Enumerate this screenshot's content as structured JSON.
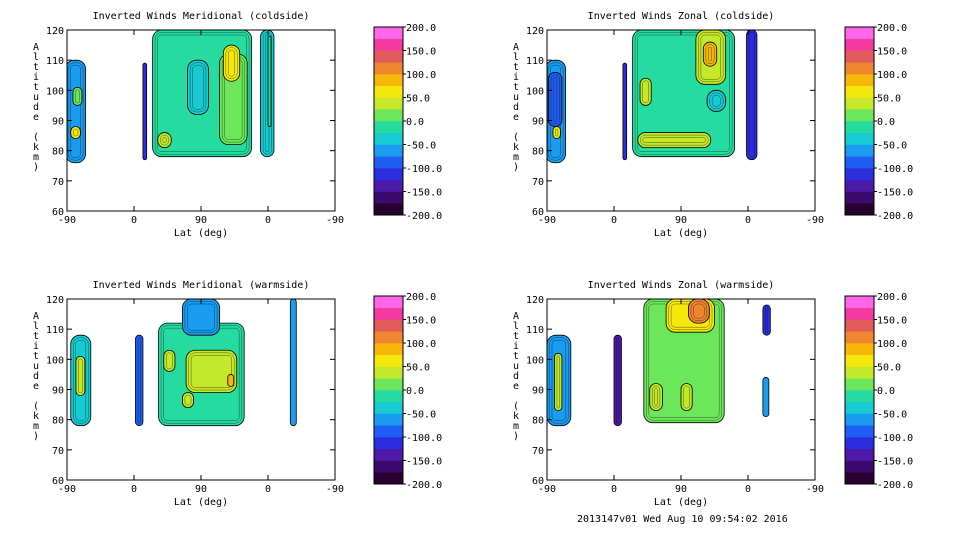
{
  "chart_data": [
    {
      "type": "heatmap",
      "title": "Inverted Winds Meridional (coldside)",
      "xlabel": "Lat (deg)",
      "ylabel": "Altitude (km)",
      "x_ticks": [
        "-90",
        "0",
        "90",
        "0",
        "-90"
      ],
      "y_ticks": [
        "60",
        "70",
        "80",
        "90",
        "100",
        "110",
        "120"
      ],
      "ylim": [
        60,
        120
      ],
      "colorbar_ticks": [
        "200.0",
        "150.0",
        "100.0",
        "50.0",
        "0.0",
        "-50.0",
        "-100.0",
        "-150.0",
        "-200.0"
      ],
      "colorbar_range": [
        -200,
        200
      ],
      "data_blobs": [
        {
          "x": [
            -78,
            -73
          ],
          "y": [
            77,
            109
          ],
          "value": -120
        },
        {
          "x": [
            -65,
            68
          ],
          "y": [
            78,
            120
          ],
          "value": -5
        },
        {
          "x": [
            -18,
            10
          ],
          "y": [
            92,
            110
          ],
          "value": -35
        },
        {
          "x": [
            25,
            62
          ],
          "y": [
            82,
            112
          ],
          "value": 20
        },
        {
          "x": [
            30,
            52
          ],
          "y": [
            103,
            115
          ],
          "value": 55
        },
        {
          "x": [
            -58,
            -40
          ],
          "y": [
            81,
            86
          ],
          "value": 40
        },
        {
          "x": [
            80,
            98
          ],
          "y": [
            78,
            120
          ],
          "value": -50
        },
        {
          "x": [
            90,
            93
          ],
          "y": [
            88,
            118
          ],
          "value": -25
        },
        {
          "x": [
            -182,
            -155
          ],
          "y": [
            76,
            110
          ],
          "value": -60
        },
        {
          "x": [
            -175,
            -162
          ],
          "y": [
            84,
            88
          ],
          "value": 55
        },
        {
          "x": [
            -172,
            -160
          ],
          "y": [
            95,
            101
          ],
          "value": 10
        }
      ]
    },
    {
      "type": "heatmap",
      "title": "Inverted Winds Zonal (coldside)",
      "xlabel": "Lat (deg)",
      "ylabel": "Altitude (km)",
      "x_ticks": [
        "-90",
        "0",
        "90",
        "0",
        "-90"
      ],
      "y_ticks": [
        "60",
        "70",
        "80",
        "90",
        "100",
        "110",
        "120"
      ],
      "ylim": [
        60,
        120
      ],
      "colorbar_ticks": [
        "200.0",
        "150.0",
        "100.0",
        "50.0",
        "0.0",
        "-50.0",
        "-100.0",
        "-150.0",
        "-200.0"
      ],
      "colorbar_range": [
        -200,
        200
      ],
      "data_blobs": [
        {
          "x": [
            -78,
            -73
          ],
          "y": [
            77,
            109
          ],
          "value": -120
        },
        {
          "x": [
            -65,
            72
          ],
          "y": [
            78,
            120
          ],
          "value": -5
        },
        {
          "x": [
            20,
            60
          ],
          "y": [
            102,
            120
          ],
          "value": 40
        },
        {
          "x": [
            30,
            48
          ],
          "y": [
            108,
            116
          ],
          "value": 90
        },
        {
          "x": [
            -58,
            40
          ],
          "y": [
            81,
            86
          ],
          "value": 45
        },
        {
          "x": [
            35,
            60
          ],
          "y": [
            93,
            100
          ],
          "value": -35
        },
        {
          "x": [
            -55,
            -40
          ],
          "y": [
            95,
            104
          ],
          "value": 30
        },
        {
          "x": [
            88,
            102
          ],
          "y": [
            77,
            120
          ],
          "value": -110
        },
        {
          "x": [
            -182,
            -155
          ],
          "y": [
            76,
            110
          ],
          "value": -60
        },
        {
          "x": [
            -178,
            -160
          ],
          "y": [
            88,
            106
          ],
          "value": -90
        },
        {
          "x": [
            -172,
            -162
          ],
          "y": [
            84,
            88
          ],
          "value": 55
        }
      ]
    },
    {
      "type": "heatmap",
      "title": "Inverted Winds Meridional (warmside)",
      "xlabel": "Lat (deg)",
      "ylabel": "Altitude (km)",
      "x_ticks": [
        "-90",
        "0",
        "90",
        "0",
        "-90"
      ],
      "y_ticks": [
        "60",
        "70",
        "80",
        "90",
        "100",
        "110",
        "120"
      ],
      "ylim": [
        60,
        120
      ],
      "colorbar_ticks": [
        "200.0",
        "150.0",
        "100.0",
        "50.0",
        "0.0",
        "-50.0",
        "-100.0",
        "-150.0",
        "-200.0"
      ],
      "colorbar_range": [
        -200,
        200
      ],
      "data_blobs": [
        {
          "x": [
            -88,
            -78
          ],
          "y": [
            78,
            108
          ],
          "value": -95
        },
        {
          "x": [
            -57,
            58
          ],
          "y": [
            78,
            112
          ],
          "value": -8
        },
        {
          "x": [
            -25,
            25
          ],
          "y": [
            108,
            120
          ],
          "value": -70
        },
        {
          "x": [
            -20,
            48
          ],
          "y": [
            89,
            103
          ],
          "value": 25
        },
        {
          "x": [
            36,
            44
          ],
          "y": [
            91,
            95
          ],
          "value": 80
        },
        {
          "x": [
            -50,
            -35
          ],
          "y": [
            96,
            103
          ],
          "value": 30
        },
        {
          "x": [
            -25,
            -10
          ],
          "y": [
            84,
            89
          ],
          "value": 40
        },
        {
          "x": [
            120,
            128
          ],
          "y": [
            78,
            120
          ],
          "value": -60
        },
        {
          "x": [
            -175,
            -148
          ],
          "y": [
            78,
            108
          ],
          "value": -35
        },
        {
          "x": [
            -168,
            -156
          ],
          "y": [
            88,
            101
          ],
          "value": 40
        }
      ]
    },
    {
      "type": "heatmap",
      "title": "Inverted Winds Zonal (warmside)",
      "xlabel": "Lat (deg)",
      "ylabel": "Altitude (km)",
      "x_ticks": [
        "-90",
        "0",
        "90",
        "0",
        "-90"
      ],
      "y_ticks": [
        "60",
        "70",
        "80",
        "90",
        "100",
        "110",
        "120"
      ],
      "ylim": [
        60,
        120
      ],
      "colorbar_ticks": [
        "200.0",
        "150.0",
        "100.0",
        "50.0",
        "0.0",
        "-50.0",
        "-100.0",
        "-150.0",
        "-200.0"
      ],
      "colorbar_range": [
        -200,
        200
      ],
      "data_blobs": [
        {
          "x": [
            -90,
            -80
          ],
          "y": [
            78,
            108
          ],
          "value": -130
        },
        {
          "x": [
            -50,
            58
          ],
          "y": [
            79,
            120
          ],
          "value": 0
        },
        {
          "x": [
            -20,
            45
          ],
          "y": [
            109,
            120
          ],
          "value": 70
        },
        {
          "x": [
            10,
            38
          ],
          "y": [
            112,
            120
          ],
          "value": 100
        },
        {
          "x": [
            0,
            15
          ],
          "y": [
            83,
            92
          ],
          "value": 45
        },
        {
          "x": [
            -42,
            -25
          ],
          "y": [
            83,
            92
          ],
          "value": 30
        },
        {
          "x": [
            110,
            120
          ],
          "y": [
            108,
            118
          ],
          "value": -110
        },
        {
          "x": [
            110,
            118
          ],
          "y": [
            81,
            94
          ],
          "value": -60
        },
        {
          "x": [
            -180,
            -148
          ],
          "y": [
            78,
            108
          ],
          "value": -55
        },
        {
          "x": [
            -170,
            -160
          ],
          "y": [
            83,
            102
          ],
          "value": 25
        }
      ]
    }
  ],
  "footer": "2013147v01 Wed Aug 10 09:54:02 2016"
}
